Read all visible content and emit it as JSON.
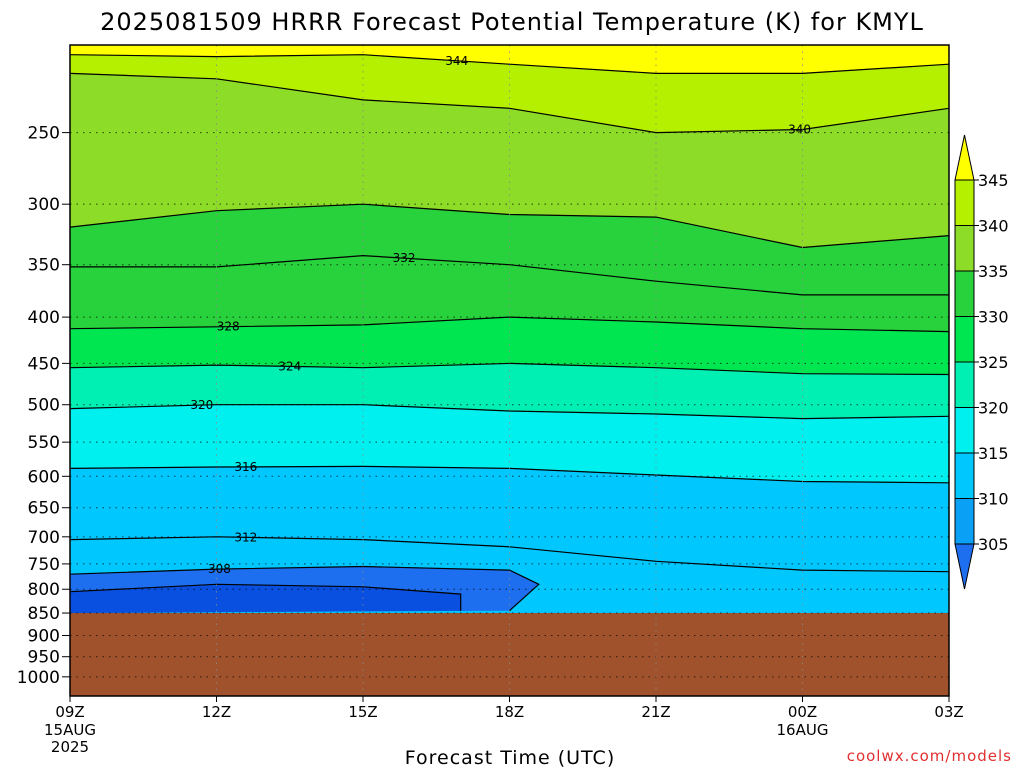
{
  "chart_data": {
    "type": "heatmap",
    "title": "2025081509 HRRR Forecast Potential Temperature (K) for KMYL",
    "xlabel": "Forecast Time (UTC)",
    "ylabel": "",
    "x_ticks": [
      {
        "hour": 0,
        "label": "09Z",
        "sub": [
          "15AUG",
          "2025"
        ]
      },
      {
        "hour": 3,
        "label": "12Z",
        "sub": []
      },
      {
        "hour": 6,
        "label": "15Z",
        "sub": []
      },
      {
        "hour": 9,
        "label": "18Z",
        "sub": []
      },
      {
        "hour": 12,
        "label": "21Z",
        "sub": []
      },
      {
        "hour": 15,
        "label": "00Z",
        "sub": [
          "16AUG"
        ]
      },
      {
        "hour": 18,
        "label": "03Z",
        "sub": []
      }
    ],
    "xlim": [
      0,
      18
    ],
    "y_ticks": [
      250,
      300,
      350,
      400,
      450,
      500,
      550,
      600,
      650,
      700,
      750,
      800,
      850,
      900,
      950,
      1000
    ],
    "ylim_hPa": [
      200,
      1050
    ],
    "y_scale": "log-pressure",
    "grid": "dotted",
    "surface_pressure_hPa": 850,
    "surface_color": "#a0522d",
    "contour_interval_K": 4,
    "color_levels": [
      305,
      310,
      315,
      320,
      325,
      330,
      335,
      340,
      345
    ],
    "color_fills": [
      "#1e6ff0",
      "#0aa0f5",
      "#00c8ff",
      "#00f0f0",
      "#00f0b4",
      "#00e650",
      "#28d23c",
      "#8cdc28",
      "#b4f000",
      "#ffff00"
    ],
    "isentropes": [
      {
        "theta": 312,
        "label": "312",
        "points": [
          [
            0,
            705
          ],
          [
            3,
            700
          ],
          [
            6,
            705
          ],
          [
            9,
            718
          ],
          [
            12,
            745
          ],
          [
            15,
            762
          ],
          [
            18,
            765
          ]
        ]
      },
      {
        "theta": 316,
        "label": "316",
        "points": [
          [
            0,
            588
          ],
          [
            3,
            586
          ],
          [
            6,
            585
          ],
          [
            9,
            588
          ],
          [
            12,
            598
          ],
          [
            15,
            608
          ],
          [
            18,
            610
          ]
        ]
      },
      {
        "theta": 320,
        "label": "320",
        "points": [
          [
            0,
            505
          ],
          [
            3,
            500
          ],
          [
            6,
            500
          ],
          [
            9,
            508
          ],
          [
            12,
            512
          ],
          [
            15,
            518
          ],
          [
            18,
            515
          ]
        ]
      },
      {
        "theta": 324,
        "label": "324",
        "points": [
          [
            0,
            455
          ],
          [
            3,
            452
          ],
          [
            6,
            455
          ],
          [
            9,
            450
          ],
          [
            12,
            455
          ],
          [
            15,
            462
          ],
          [
            18,
            463
          ]
        ]
      },
      {
        "theta": 328,
        "label": "328",
        "points": [
          [
            0,
            412
          ],
          [
            3,
            410
          ],
          [
            6,
            408
          ],
          [
            9,
            400
          ],
          [
            12,
            405
          ],
          [
            15,
            412
          ],
          [
            18,
            415
          ]
        ]
      },
      {
        "theta": 332,
        "label": "332",
        "points": [
          [
            0,
            352
          ],
          [
            3,
            352
          ],
          [
            6,
            342
          ],
          [
            9,
            350
          ],
          [
            12,
            365
          ],
          [
            15,
            378
          ],
          [
            18,
            378
          ]
        ]
      },
      {
        "theta": 336,
        "label": "",
        "points": [
          [
            0,
            318
          ],
          [
            3,
            305
          ],
          [
            6,
            300
          ],
          [
            9,
            308
          ],
          [
            12,
            310
          ],
          [
            15,
            335
          ],
          [
            18,
            325
          ]
        ]
      },
      {
        "theta": 340,
        "label": "340",
        "points": [
          [
            0,
            215
          ],
          [
            3,
            218
          ],
          [
            6,
            230
          ],
          [
            9,
            235
          ],
          [
            12,
            250
          ],
          [
            15,
            248
          ],
          [
            18,
            235
          ]
        ]
      },
      {
        "theta": 344,
        "label": "344",
        "points": [
          [
            0,
            205
          ],
          [
            3,
            206
          ],
          [
            6,
            205
          ],
          [
            9,
            210
          ],
          [
            12,
            215
          ],
          [
            15,
            215
          ],
          [
            18,
            210
          ]
        ]
      }
    ],
    "cold_pool": [
      {
        "theta": 308,
        "label": "308",
        "points": [
          [
            0,
            770
          ],
          [
            3,
            760
          ],
          [
            6,
            755
          ],
          [
            9,
            762
          ],
          [
            9.6,
            790
          ],
          [
            9,
            845
          ]
        ]
      },
      {
        "theta": 310,
        "label": "",
        "points": [
          [
            0,
            805
          ],
          [
            3,
            790
          ],
          [
            6,
            795
          ],
          [
            8,
            810
          ],
          [
            8,
            845
          ]
        ]
      }
    ],
    "colorbar_ticks": [
      305,
      310,
      315,
      320,
      325,
      330,
      335,
      340,
      345
    ]
  },
  "credit": "coolwx.com/models"
}
